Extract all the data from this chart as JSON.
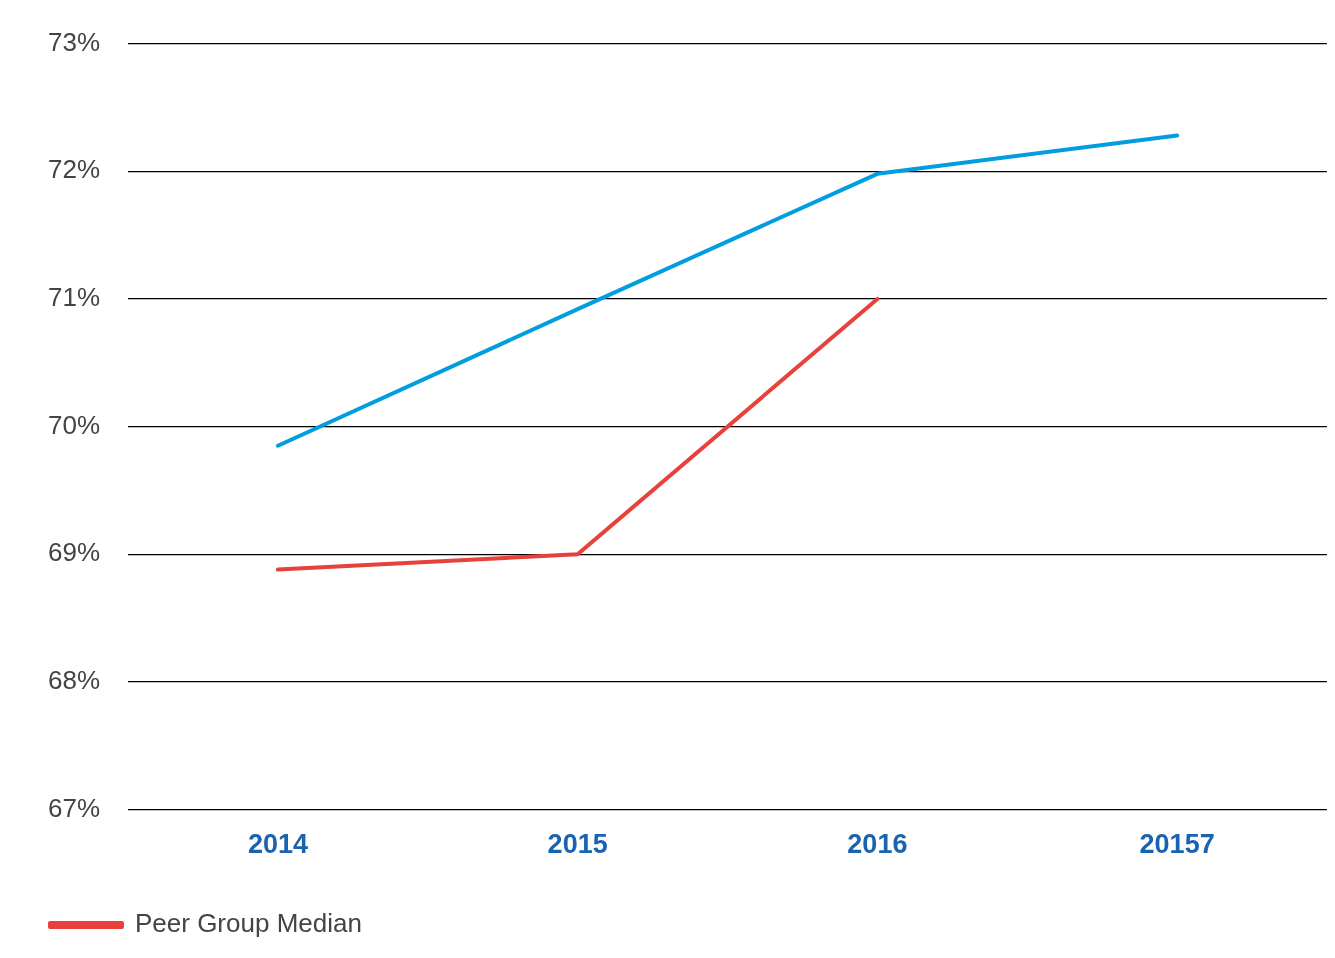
{
  "chart_data": {
    "type": "line",
    "categories": [
      "2014",
      "2015",
      "2016",
      "20157"
    ],
    "series": [
      {
        "name": "Peer Group Median",
        "color": "#e8403a",
        "values": [
          68.88,
          69.0,
          71.0,
          null
        ]
      },
      {
        "color": "#009ede",
        "values": [
          69.85,
          70.92,
          71.98,
          72.28
        ]
      }
    ],
    "ylim": [
      67,
      73
    ],
    "yticks": [
      {
        "value": 67,
        "label": "67%"
      },
      {
        "value": 68,
        "label": "68%"
      },
      {
        "value": 69,
        "label": "69%"
      },
      {
        "value": 70,
        "label": "70%"
      },
      {
        "value": 71,
        "label": "71%"
      },
      {
        "value": 72,
        "label": "72%"
      },
      {
        "value": 73,
        "label": "73%"
      }
    ],
    "grid": "y",
    "legend": "bottom left",
    "marker": "none",
    "line_style": "solid"
  }
}
